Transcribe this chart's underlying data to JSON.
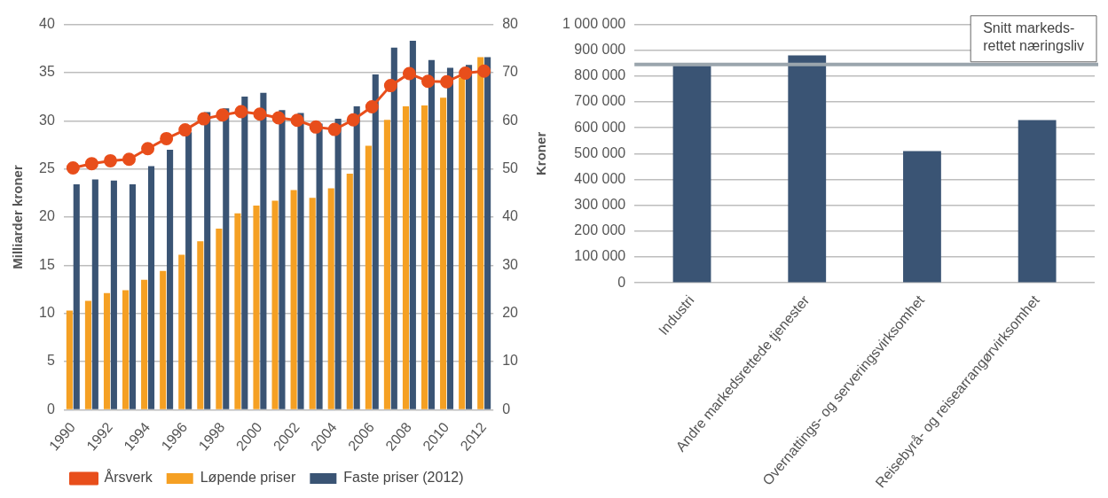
{
  "chart_data": [
    {
      "type": "bar",
      "ylabel": "Milliarder kroner",
      "categories": [
        "1990",
        null,
        "1992",
        null,
        "1994",
        null,
        "1996",
        null,
        "1998",
        null,
        "2000",
        null,
        "2002",
        null,
        "2004",
        null,
        "2006",
        null,
        "2008",
        null,
        "2010",
        null,
        "2012"
      ],
      "series": [
        {
          "name": "Løpende priser",
          "color": "#f5a023",
          "values": [
            10.3,
            11.3,
            12.1,
            12.4,
            13.5,
            14.4,
            16.1,
            17.5,
            18.8,
            20.4,
            21.2,
            21.7,
            22.8,
            22.0,
            23.0,
            24.5,
            27.4,
            30.1,
            31.5,
            31.6,
            32.4,
            34.5,
            36.6
          ]
        },
        {
          "name": "Faste priser (2012)",
          "color": "#3a5474",
          "values": [
            23.4,
            23.9,
            23.8,
            23.4,
            25.3,
            27.0,
            28.8,
            30.9,
            31.3,
            32.5,
            32.9,
            31.1,
            30.8,
            29.7,
            30.2,
            31.5,
            34.8,
            37.6,
            38.3,
            36.3,
            35.5,
            35.8,
            36.6
          ]
        },
        {
          "name": "Årsverk",
          "type": "line",
          "axis": "y2",
          "color": "#e84e1b",
          "values": [
            50.2,
            51.1,
            51.7,
            52.0,
            54.2,
            56.3,
            58.1,
            60.4,
            61.2,
            61.9,
            61.4,
            60.6,
            60.1,
            58.7,
            58.2,
            60.2,
            62.9,
            67.3,
            69.8,
            68.2,
            68.1,
            69.9,
            70.3
          ]
        }
      ],
      "ylim": [
        0,
        40
      ],
      "yticks": [
        0,
        5,
        10,
        15,
        20,
        25,
        30,
        35,
        40
      ],
      "y2lim": [
        0,
        80
      ],
      "y2ticks": [
        0,
        10,
        20,
        30,
        40,
        50,
        60,
        70,
        80
      ],
      "grid": "y",
      "legend": "bottom",
      "marker": "circle"
    },
    {
      "type": "bar",
      "ylabel": "Kroner",
      "categories": [
        "Industri",
        "Andre markedsrettede tjenester",
        "Overnattings- og serveringsvirksomhet",
        "Reisebyrå- og reisearrangørvirksomhet"
      ],
      "values": [
        840000,
        880000,
        510000,
        630000
      ],
      "color": "#3a5474",
      "ylim": [
        0,
        1000000
      ],
      "yticks": [
        {
          "value": 0,
          "label": "0"
        },
        {
          "value": 100000,
          "label": "100 000"
        },
        {
          "value": 200000,
          "label": "200 000"
        },
        {
          "value": 300000,
          "label": "300 000"
        },
        {
          "value": 400000,
          "label": "400 000"
        },
        {
          "value": 500000,
          "label": "500 000"
        },
        {
          "value": 600000,
          "label": "600 000"
        },
        {
          "value": 700000,
          "label": "700 000"
        },
        {
          "value": 800000,
          "label": "800 000"
        },
        {
          "value": 900000,
          "label": "900 000"
        },
        {
          "value": 1000000,
          "label": "1 000 000"
        }
      ],
      "ref_lines": [
        {
          "axis": "y",
          "value": 845000,
          "label": "Snitt markeds-\nrettet næringsliv",
          "color": "#9aa5ad"
        }
      ],
      "grid": "y"
    }
  ]
}
